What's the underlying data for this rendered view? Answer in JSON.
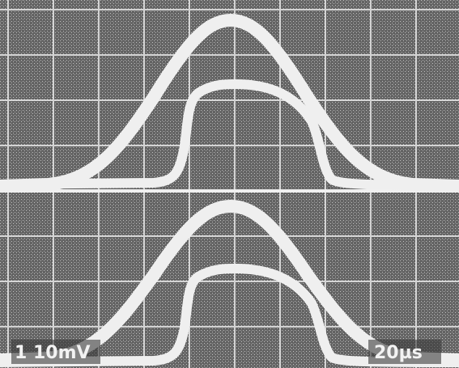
{
  "screen": {
    "channel_label": "1 10mV",
    "timebase_label": "20µs"
  }
}
